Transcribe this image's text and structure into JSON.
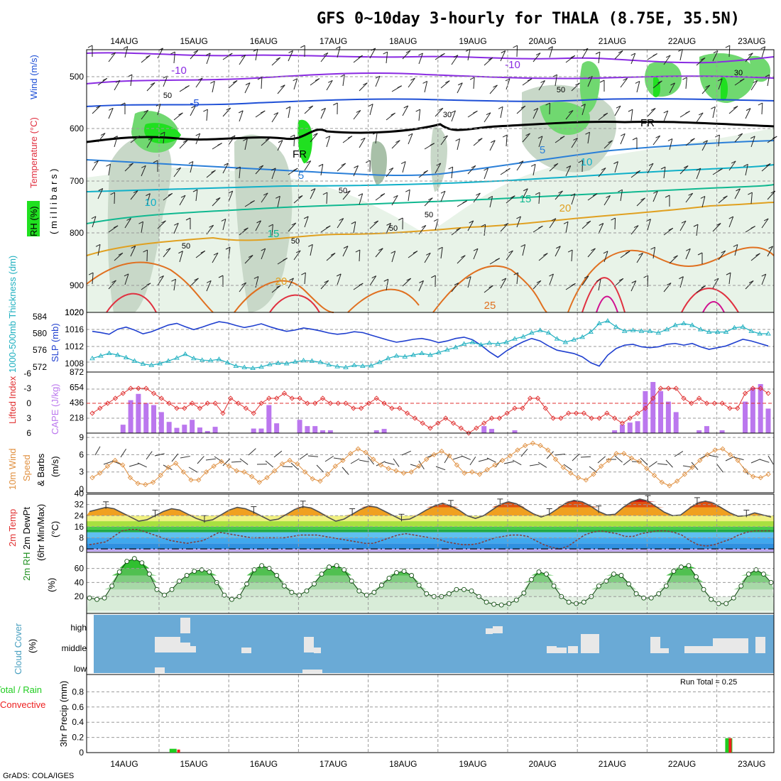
{
  "title": "GFS 0~10day 3-hourly for THALA (8.75E, 35.5N)",
  "credit": "GrADS: COLA/IGES",
  "run_total": "Run Total = 0.25",
  "chart_data": [
    {
      "panel": "upper_air",
      "type": "contour",
      "x": [
        "14AUG",
        "15AUG",
        "16AUG",
        "17AUG",
        "18AUG",
        "19AUG",
        "20AUG",
        "21AUG",
        "22AUG",
        "23AUG"
      ],
      "ylabel_parts": [
        "RH (%)",
        "Temperature (°C)",
        "Wind (m/s)"
      ],
      "ylabel_right": "( m i l l i b a r s )",
      "yticks": [
        "500",
        "600",
        "700",
        "800",
        "900",
        "1020"
      ],
      "ylim": [
        1020,
        450
      ],
      "contour_labels": [
        {
          "text": "-10",
          "color": "#8a2be2"
        },
        {
          "text": "-10",
          "color": "#8a2be2"
        },
        {
          "text": "-5",
          "color": "#1e4fd6"
        },
        {
          "text": "5",
          "color": "#2a7fd8"
        },
        {
          "text": "5",
          "color": "#2a7fd8"
        },
        {
          "text": "10",
          "color": "#10b0c8"
        },
        {
          "text": "10",
          "color": "#10b0c8"
        },
        {
          "text": "15",
          "color": "#10b890"
        },
        {
          "text": "15",
          "color": "#10b890"
        },
        {
          "text": "20",
          "color": "#e0a020"
        },
        {
          "text": "20",
          "color": "#e0a020"
        },
        {
          "text": "25",
          "color": "#e07020"
        },
        {
          "text": "FR",
          "color": "#000000"
        },
        {
          "text": "FR",
          "color": "#000000"
        },
        {
          "text": "30",
          "color": "#888888"
        },
        {
          "text": "30",
          "color": "#888888"
        },
        {
          "text": "50",
          "color": "#888888"
        },
        {
          "text": "50",
          "color": "#888888"
        },
        {
          "text": "50",
          "color": "#888888"
        },
        {
          "text": "50",
          "color": "#888888"
        },
        {
          "text": "50",
          "color": "#888888"
        },
        {
          "text": "50",
          "color": "#888888"
        },
        {
          "text": "50",
          "color": "#888888"
        }
      ],
      "rh_colors": [
        "#e8f3e8",
        "#c8d8c8",
        "#a8c0a8",
        "#70d870",
        "#20e020"
      ],
      "contour_colors": {
        "minus10": "#8a2be2",
        "minus5": "#1e4fd6",
        "frz": "#000000",
        "t5": "#2a7fd8",
        "t10": "#10b0c8",
        "t15": "#10b890",
        "t20": "#e0a020",
        "t25": "#e07020",
        "t30": "#e03040",
        "t35": "#d01090"
      }
    },
    {
      "panel": "thickness_slp",
      "type": "line",
      "ylabel_left": "1000-500mb Thickness (dm)",
      "ylabel_right": "SLP (mb)",
      "yticks_left": [
        "584",
        "580",
        "576",
        "572"
      ],
      "yticks_right": [
        "1020",
        "1016",
        "1012",
        "1008"
      ],
      "series": [
        {
          "name": "1000-500mb Thickness (dm)",
          "color": "#1f3fcf",
          "values": [
            580.5,
            580.2,
            579.8,
            581.0,
            581.5,
            580.8,
            579.9,
            580.4,
            581.2,
            582.0,
            582.4,
            581.6,
            580.9,
            581.5,
            582.2,
            582.8,
            582.5,
            581.9,
            581.4,
            581.8,
            582.3,
            581.6,
            581.0,
            580.5,
            580.8,
            581.3,
            581.0,
            580.6,
            580.1,
            579.8,
            580.0,
            580.4,
            580.2,
            579.6,
            579.0,
            578.4,
            577.9,
            578.2,
            578.6,
            578.8,
            578.4,
            577.8,
            578.2,
            578.8,
            579.1,
            578.5,
            577.2,
            575.6,
            574.3,
            575.8,
            577.0,
            578.0,
            578.8,
            578.2,
            577.0,
            576.0,
            575.6,
            575.2,
            574.4,
            573.0,
            572.2,
            574.8,
            576.4,
            577.2,
            577.4,
            576.8,
            576.6,
            576.8,
            577.4,
            577.6,
            577.2,
            577.6,
            576.8,
            576.2,
            576.6,
            577.0,
            577.8,
            578.6,
            578.2,
            577.6,
            577.0
          ]
        },
        {
          "name": "SLP (mb)",
          "color": "#20b0c0",
          "values": [
            1009.2,
            1009.8,
            1010.4,
            1010.0,
            1009.4,
            1008.6,
            1007.9,
            1007.6,
            1008.0,
            1008.6,
            1009.3,
            1010.2,
            1009.2,
            1008.8,
            1008.7,
            1009.0,
            1008.2,
            1007.4,
            1007.1,
            1006.9,
            1007.2,
            1007.8,
            1008.1,
            1008.0,
            1008.4,
            1008.7,
            1008.6,
            1008.3,
            1007.7,
            1007.3,
            1007.1,
            1007.6,
            1007.4,
            1007.5,
            1008.3,
            1009.2,
            1009.8,
            1009.6,
            1010.0,
            1010.4,
            1010.0,
            1010.6,
            1011.2,
            1011.8,
            1012.6,
            1013.0,
            1012.4,
            1012.8,
            1012.6,
            1013.0,
            1013.8,
            1014.3,
            1015.2,
            1015.8,
            1015.2,
            1013.8,
            1013.0,
            1013.6,
            1014.2,
            1015.4,
            1017.4,
            1018.0,
            1016.6,
            1015.6,
            1015.8,
            1015.6,
            1015.6,
            1015.2,
            1016.0,
            1017.0,
            1017.4,
            1017.0,
            1016.0,
            1015.4,
            1015.4,
            1015.4,
            1016.4,
            1016.6,
            1015.6,
            1015.0,
            1015.0
          ]
        }
      ]
    },
    {
      "panel": "cape_li",
      "type": "bar",
      "ylabel_left": "Lifted Index",
      "ylabel_right": "CAPE (J/kg)",
      "yticks_left": [
        "-6",
        "-3",
        "0",
        "3",
        "6"
      ],
      "yticks_right": [
        "872",
        "654",
        "436",
        "218"
      ],
      "series": [
        {
          "name": "CAPE (J/kg)",
          "color": "#bb77ee",
          "values": [
            0,
            0,
            0,
            0,
            120,
            470,
            560,
            430,
            400,
            300,
            160,
            75,
            120,
            190,
            80,
            30,
            90,
            0,
            0,
            0,
            0,
            65,
            65,
            400,
            140,
            0,
            0,
            190,
            100,
            100,
            40,
            40,
            0,
            0,
            0,
            0,
            0,
            40,
            60,
            0,
            0,
            0,
            0,
            0,
            0,
            0,
            0,
            0,
            0,
            0,
            0,
            100,
            60,
            0,
            0,
            40,
            0,
            0,
            0,
            0,
            0,
            0,
            0,
            0,
            0,
            0,
            0,
            0,
            40,
            120,
            150,
            170,
            600,
            730,
            600,
            450,
            300,
            0,
            0,
            40,
            100,
            0,
            40,
            0,
            0,
            450,
            650,
            700,
            350
          ]
        },
        {
          "name": "Lifted Index",
          "color": "#e03030",
          "values": [
            2,
            1,
            0,
            -1,
            -2,
            -3,
            -3,
            -3,
            -2,
            -1,
            0,
            1,
            1,
            0,
            1,
            0,
            0,
            2,
            -1,
            0,
            1,
            2,
            0,
            -1,
            -1,
            -2,
            -1,
            -1,
            0,
            0,
            -1,
            0,
            0,
            0,
            1,
            1,
            0,
            -1,
            0,
            1,
            1,
            2,
            3,
            4,
            5,
            4,
            3,
            4,
            5,
            6,
            5,
            4,
            3,
            3,
            2,
            1,
            1,
            -1,
            -1,
            1,
            3,
            3,
            2,
            2,
            2,
            3,
            3,
            2,
            3,
            4,
            3,
            2,
            1,
            -1,
            -3,
            -3,
            -3,
            -1,
            0,
            -1,
            0,
            0,
            0,
            1,
            1,
            -2,
            -3,
            -3,
            -2
          ]
        }
      ]
    },
    {
      "panel": "wind",
      "type": "line",
      "ylabel": "10m Wind Speed & Barbs (m/s)",
      "yticks": [
        "9",
        "6",
        "3",
        "0"
      ],
      "series": [
        {
          "name": "10m Wind Speed",
          "color": "#e09040",
          "values": [
            2.0,
            2.8,
            4.0,
            5.0,
            4.2,
            2.0,
            1.0,
            0.8,
            1.2,
            2.4,
            3.8,
            4.5,
            3.0,
            1.6,
            1.6,
            3.0,
            4.0,
            4.8,
            4.0,
            3.2,
            3.0,
            2.2,
            1.2,
            2.0,
            3.2,
            4.4,
            5.0,
            4.4,
            3.0,
            1.8,
            1.4,
            2.6,
            4.0,
            5.0,
            6.2,
            7.0,
            6.4,
            5.2,
            4.2,
            3.6,
            3.2,
            2.8,
            3.0,
            4.0,
            5.2,
            6.0,
            6.6,
            5.8,
            4.2,
            2.8,
            3.0,
            2.6,
            3.4,
            4.2,
            5.0,
            5.8,
            6.8,
            7.6,
            8.0,
            7.6,
            6.8,
            5.2,
            3.8,
            2.8,
            2.0,
            1.6,
            2.6,
            4.0,
            5.0,
            6.2,
            6.2,
            5.4,
            4.8,
            3.6,
            2.4,
            1.2,
            0.6,
            1.4,
            2.6,
            3.8,
            5.0,
            6.0,
            6.8,
            7.0,
            6.0,
            5.0,
            3.2,
            2.2,
            2.0,
            2.6
          ]
        }
      ]
    },
    {
      "panel": "temperature",
      "type": "area",
      "ylabel": "2m Temp 2m DewPt (6hr Min/Max) (°C)",
      "yticks": [
        "40",
        "32",
        "24",
        "16",
        "8",
        "0"
      ],
      "series": [
        {
          "name": "2m Temp",
          "color": "#505050",
          "values": [
            27,
            28.5,
            30,
            29,
            26,
            23,
            20,
            21,
            24,
            27,
            29,
            28,
            25,
            22,
            20,
            21,
            24.5,
            28,
            30,
            29,
            26.5,
            23.5,
            20.5,
            21.5,
            25,
            28.5,
            30.5,
            29.5,
            26.5,
            23,
            20,
            21.5,
            25,
            28.5,
            31,
            30,
            27,
            24,
            21,
            21.5,
            24.5,
            28,
            31,
            33,
            31,
            28,
            24,
            22,
            24,
            28,
            32,
            34,
            32.5,
            29,
            25.5,
            23,
            25,
            29,
            33,
            35,
            34,
            31,
            27,
            24.5,
            25,
            30,
            34,
            36,
            34.5,
            30.5,
            26.5,
            24,
            24.5,
            29,
            33,
            34.5,
            33,
            29.5,
            26,
            23.5,
            24,
            26,
            24.5,
            23
          ]
        },
        {
          "name": "2m DewPt",
          "color": "#804040",
          "values": [
            3,
            4,
            5,
            9,
            13,
            14,
            14,
            12,
            10,
            8,
            6,
            5,
            4,
            5,
            6,
            9,
            12,
            11,
            10,
            9,
            8,
            8,
            8,
            8,
            8,
            9,
            10,
            10,
            10,
            9,
            8,
            7,
            6,
            5,
            4,
            4,
            6,
            8,
            10,
            11,
            10,
            9,
            8,
            7,
            5,
            4,
            3,
            3,
            4,
            6,
            8,
            9,
            10,
            10,
            9,
            6,
            3,
            1,
            0,
            2,
            6,
            10,
            12,
            13,
            12,
            11,
            9,
            9,
            11,
            12,
            13,
            13,
            12,
            10,
            6,
            3,
            2,
            3,
            5,
            7,
            10,
            12,
            13,
            13,
            13
          ]
        }
      ]
    },
    {
      "panel": "rh2m",
      "type": "area",
      "ylabel": "2m RH (%)",
      "yticks": [
        "60",
        "40",
        "20"
      ],
      "series": [
        {
          "name": "2m RH",
          "color": "#209020",
          "values": [
            18,
            16,
            18,
            35,
            55,
            70,
            74,
            68,
            52,
            30,
            22,
            30,
            42,
            50,
            56,
            58,
            55,
            40,
            22,
            16,
            20,
            38,
            58,
            64,
            60,
            50,
            35,
            26,
            22,
            28,
            38,
            52,
            62,
            64,
            58,
            42,
            28,
            22,
            26,
            36,
            46,
            54,
            56,
            50,
            36,
            24,
            20,
            20,
            24,
            30,
            30,
            28,
            20,
            12,
            9,
            8,
            10,
            15,
            25,
            44,
            55,
            52,
            35,
            20,
            12,
            10,
            12,
            20,
            35,
            42,
            52,
            50,
            38,
            24,
            18,
            18,
            24,
            35,
            56,
            62,
            64,
            48,
            30,
            16,
            10,
            10,
            18,
            35,
            52,
            58,
            52,
            40
          ]
        }
      ]
    },
    {
      "panel": "cloud",
      "type": "bar",
      "ylabel": "Cloud Cover (%)",
      "yticks": [
        "high",
        "middle",
        "low"
      ],
      "color_background": "#6aaad6",
      "color_bar": "#e8e8e8"
    },
    {
      "panel": "precip",
      "type": "bar",
      "ylabel_left_parts": [
        "Total / Rain",
        "Convective"
      ],
      "ylabel_right": "3hr Precip (mm)",
      "yticks": [
        "0.8",
        "0.6",
        "0.4",
        "0.2",
        "0"
      ],
      "ylim": [
        0,
        1.0
      ],
      "series": [
        {
          "name": "Total / Rain",
          "color": "#20cc20",
          "values": [
            {
              "x": 14.7,
              "v": 0.05
            },
            {
              "x": 22.67,
              "v": 0.19
            }
          ]
        },
        {
          "name": "Convective",
          "color": "#ee2020",
          "values": [
            {
              "x": 14.78,
              "v": 0.04
            },
            {
              "x": 22.69,
              "v": 0.19
            }
          ]
        }
      ]
    }
  ]
}
